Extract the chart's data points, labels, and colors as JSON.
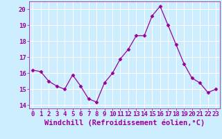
{
  "x": [
    0,
    1,
    2,
    3,
    4,
    5,
    6,
    7,
    8,
    9,
    10,
    11,
    12,
    13,
    14,
    15,
    16,
    17,
    18,
    19,
    20,
    21,
    22,
    23
  ],
  "y": [
    16.2,
    16.1,
    15.5,
    15.2,
    15.0,
    15.9,
    15.2,
    14.4,
    14.2,
    15.4,
    16.0,
    16.9,
    17.5,
    18.35,
    18.35,
    19.6,
    20.2,
    19.0,
    17.8,
    16.6,
    15.7,
    15.4,
    14.8,
    15.0
  ],
  "line_color": "#990099",
  "marker": "D",
  "marker_size": 2.5,
  "bg_color": "#cceeff",
  "grid_color": "#ffffff",
  "xlabel": "Windchill (Refroidissement éolien,°C)",
  "xlabel_color": "#990099",
  "tick_color": "#990099",
  "ylim": [
    13.8,
    20.5
  ],
  "xlim": [
    -0.5,
    23.5
  ],
  "yticks": [
    14,
    15,
    16,
    17,
    18,
    19,
    20
  ],
  "xticks": [
    0,
    1,
    2,
    3,
    4,
    5,
    6,
    7,
    8,
    9,
    10,
    11,
    12,
    13,
    14,
    15,
    16,
    17,
    18,
    19,
    20,
    21,
    22,
    23
  ],
  "tick_fontsize": 6.5,
  "xlabel_fontsize": 7.5
}
